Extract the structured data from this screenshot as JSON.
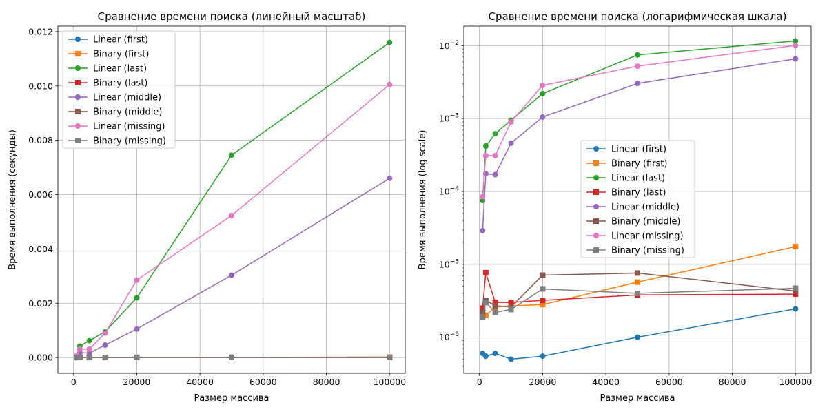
{
  "chart_data": [
    {
      "type": "line",
      "title": "Сравнение времени поиска (линейный масштаб)",
      "xlabel": "Размер массива",
      "ylabel": "Время выполнения (секунды)",
      "yscale": "linear",
      "xlim": [
        -4950,
        104950
      ],
      "ylim": [
        -0.00058,
        0.0122
      ],
      "xticks": [
        0,
        20000,
        40000,
        60000,
        80000,
        100000
      ],
      "xtick_labels": [
        "0",
        "20000",
        "40000",
        "60000",
        "80000",
        "100000"
      ],
      "yticks": [
        0,
        0.002,
        0.004,
        0.006,
        0.008,
        0.01,
        0.012
      ],
      "ytick_labels": [
        "0.000",
        "0.002",
        "0.004",
        "0.006",
        "0.008",
        "0.010",
        "0.012"
      ],
      "grid": true,
      "legend_position": "top-left",
      "x": [
        1000,
        2000,
        5000,
        10000,
        20000,
        50000,
        100000
      ],
      "series": [
        {
          "name": "Linear (first)",
          "color": "#1f77b4",
          "marker": "circle",
          "values": [
            6e-07,
            5.5e-07,
            6e-07,
            5e-07,
            5.5e-07,
            1e-06,
            2.45e-06
          ]
        },
        {
          "name": "Binary (first)",
          "color": "#ff7f0e",
          "marker": "square",
          "values": [
            2.3e-06,
            2e-06,
            2.6e-06,
            2.7e-06,
            2.8e-06,
            5.7e-06,
            1.75e-05
          ]
        },
        {
          "name": "Linear (last)",
          "color": "#2ca02c",
          "marker": "circle",
          "values": [
            7.5e-05,
            0.00042,
            0.00062,
            0.00095,
            0.0022,
            0.00745,
            0.0116
          ]
        },
        {
          "name": "Binary (last)",
          "color": "#d62728",
          "marker": "square",
          "values": [
            2.5e-06,
            7.7e-06,
            3e-06,
            3e-06,
            3.2e-06,
            3.8e-06,
            3.9e-06
          ]
        },
        {
          "name": "Linear (middle)",
          "color": "#9467bd",
          "marker": "circle",
          "values": [
            2.9e-05,
            0.000175,
            0.00017,
            0.00046,
            0.00105,
            0.00303,
            0.0066
          ]
        },
        {
          "name": "Binary (middle)",
          "color": "#8c564b",
          "marker": "square",
          "values": [
            2.2e-06,
            3.2e-06,
            2.7e-06,
            2.6e-06,
            7.1e-06,
            7.6e-06,
            4.3e-06
          ]
        },
        {
          "name": "Linear (missing)",
          "color": "#e377c2",
          "marker": "circle",
          "values": [
            8.5e-05,
            0.00031,
            0.00031,
            0.0009,
            0.00285,
            0.00523,
            0.01005
          ]
        },
        {
          "name": "Binary (missing)",
          "color": "#7f7f7f",
          "marker": "square",
          "values": [
            1.9e-06,
            3e-06,
            2.2e-06,
            2.4e-06,
            4.6e-06,
            4e-06,
            4.7e-06
          ]
        }
      ]
    },
    {
      "type": "line",
      "title": "Сравнение времени поиска (логарифмическая шкала)",
      "xlabel": "Размер массива",
      "ylabel": "Время выполнения (log scale)",
      "yscale": "log",
      "xlim": [
        -4950,
        104950
      ],
      "ylim": [
        3.2e-07,
        0.0185
      ],
      "xticks": [
        0,
        20000,
        40000,
        60000,
        80000,
        100000
      ],
      "xtick_labels": [
        "0",
        "20000",
        "40000",
        "60000",
        "80000",
        "100000"
      ],
      "yticks": [
        1e-06,
        1e-05,
        0.0001,
        0.001,
        0.01
      ],
      "ytick_labels": [
        {
          "base": "10",
          "exp": "−6"
        },
        {
          "base": "10",
          "exp": "−5"
        },
        {
          "base": "10",
          "exp": "−4"
        },
        {
          "base": "10",
          "exp": "−3"
        },
        {
          "base": "10",
          "exp": "−2"
        }
      ],
      "grid": true,
      "legend_position": "center",
      "x": [
        1000,
        2000,
        5000,
        10000,
        20000,
        50000,
        100000
      ],
      "series": [
        {
          "name": "Linear (first)",
          "color": "#1f77b4",
          "marker": "circle",
          "values": [
            6e-07,
            5.5e-07,
            6e-07,
            5e-07,
            5.5e-07,
            1e-06,
            2.45e-06
          ]
        },
        {
          "name": "Binary (first)",
          "color": "#ff7f0e",
          "marker": "square",
          "values": [
            2.3e-06,
            2e-06,
            2.6e-06,
            2.7e-06,
            2.8e-06,
            5.7e-06,
            1.75e-05
          ]
        },
        {
          "name": "Linear (last)",
          "color": "#2ca02c",
          "marker": "circle",
          "values": [
            7.5e-05,
            0.00042,
            0.00062,
            0.00095,
            0.0022,
            0.00745,
            0.0116
          ]
        },
        {
          "name": "Binary (last)",
          "color": "#d62728",
          "marker": "square",
          "values": [
            2.5e-06,
            7.7e-06,
            3e-06,
            3e-06,
            3.2e-06,
            3.8e-06,
            3.9e-06
          ]
        },
        {
          "name": "Linear (middle)",
          "color": "#9467bd",
          "marker": "circle",
          "values": [
            2.9e-05,
            0.000175,
            0.00017,
            0.00046,
            0.00105,
            0.00303,
            0.0066
          ]
        },
        {
          "name": "Binary (middle)",
          "color": "#8c564b",
          "marker": "square",
          "values": [
            2.2e-06,
            3.2e-06,
            2.7e-06,
            2.6e-06,
            7.1e-06,
            7.6e-06,
            4.3e-06
          ]
        },
        {
          "name": "Linear (missing)",
          "color": "#e377c2",
          "marker": "circle",
          "values": [
            8.5e-05,
            0.00031,
            0.00031,
            0.0009,
            0.00285,
            0.00523,
            0.01005
          ]
        },
        {
          "name": "Binary (missing)",
          "color": "#7f7f7f",
          "marker": "square",
          "values": [
            1.9e-06,
            3e-06,
            2.2e-06,
            2.4e-06,
            4.6e-06,
            4e-06,
            4.7e-06
          ]
        }
      ]
    }
  ]
}
